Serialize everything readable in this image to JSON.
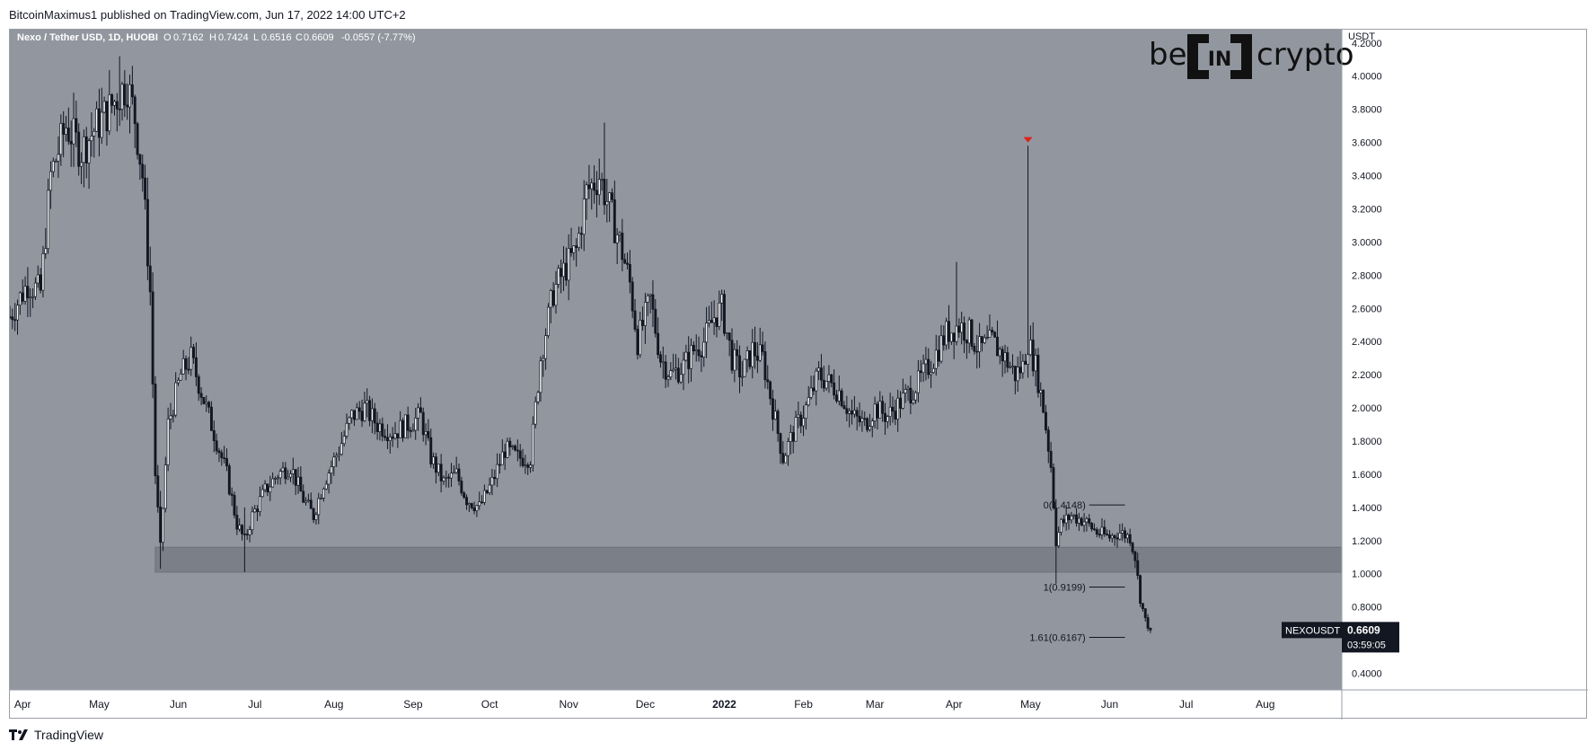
{
  "header": {
    "publisher_line": "BitcoinMaximus1 published on TradingView.com, Jun 17, 2022 14:00 UTC+2"
  },
  "legend": {
    "symbol_text": "Nexo / Tether USD, 1D, HUOBI",
    "o_label": "O",
    "o_value": "0.7162",
    "h_label": "H",
    "h_value": "0.7424",
    "l_label": "L",
    "l_value": "0.6516",
    "c_label": "C",
    "c_value": "0.6609",
    "change": "-0.0557 (-7.77%)"
  },
  "watermark": {
    "left": "be",
    "middle": "IN",
    "right": "crypto"
  },
  "axis": {
    "currency": "USDT"
  },
  "price_label": {
    "symbol": "NEXOUSDT",
    "price": "0.6609",
    "countdown": "03:59:05"
  },
  "footer": {
    "brand": "TradingView"
  },
  "colors": {
    "plot_background": "#92969f",
    "candle": "#131722",
    "support_zone": "#7b7f87",
    "marker": "#e0201b",
    "label_bg": "#131722"
  },
  "chart_data": {
    "type": "candlestick",
    "symbol": "NEXOUSDT",
    "timeframe": "1D",
    "exchange": "HUOBI",
    "ylim": [
      0.3,
      4.28
    ],
    "yticks": [
      "4.2000",
      "4.0000",
      "3.8000",
      "3.6000",
      "3.4000",
      "3.2000",
      "3.0000",
      "2.8000",
      "2.6000",
      "2.4000",
      "2.2000",
      "2.0000",
      "1.8000",
      "1.6000",
      "1.4000",
      "1.2000",
      "1.0000",
      "0.8000",
      "0.6000",
      "0.4000"
    ],
    "ytick_values": [
      4.2,
      4.0,
      3.8,
      3.6,
      3.4,
      3.2,
      3.0,
      2.8,
      2.6,
      2.4,
      2.2,
      2.0,
      1.8,
      1.6,
      1.4,
      1.2,
      1.0,
      0.8,
      0.6,
      0.4
    ],
    "xlim": [
      "2021-03-27",
      "2022-08-31"
    ],
    "xticks": [
      {
        "label": "Apr",
        "date": "2021-04-01",
        "bold": false
      },
      {
        "label": "May",
        "date": "2021-05-01",
        "bold": false
      },
      {
        "label": "Jun",
        "date": "2021-06-01",
        "bold": false
      },
      {
        "label": "Jul",
        "date": "2021-07-01",
        "bold": false
      },
      {
        "label": "Aug",
        "date": "2021-08-01",
        "bold": false
      },
      {
        "label": "Sep",
        "date": "2021-09-01",
        "bold": false
      },
      {
        "label": "Oct",
        "date": "2021-10-01",
        "bold": false
      },
      {
        "label": "Nov",
        "date": "2021-11-01",
        "bold": false
      },
      {
        "label": "Dec",
        "date": "2021-12-01",
        "bold": false
      },
      {
        "label": "2022",
        "date": "2022-01-01",
        "bold": true
      },
      {
        "label": "Feb",
        "date": "2022-02-01",
        "bold": false
      },
      {
        "label": "Mar",
        "date": "2022-03-01",
        "bold": false
      },
      {
        "label": "Apr",
        "date": "2022-04-01",
        "bold": false
      },
      {
        "label": "May",
        "date": "2022-05-01",
        "bold": false
      },
      {
        "label": "Jun",
        "date": "2022-06-01",
        "bold": false
      },
      {
        "label": "Jul",
        "date": "2022-07-01",
        "bold": false
      },
      {
        "label": "Aug",
        "date": "2022-08-01",
        "bold": false
      }
    ],
    "price_path": [
      [
        "2021-03-27",
        2.55
      ],
      [
        "2021-04-03",
        2.75
      ],
      [
        "2021-04-08",
        2.7
      ],
      [
        "2021-04-12",
        3.4
      ],
      [
        "2021-04-18",
        3.7
      ],
      [
        "2021-04-24",
        3.55
      ],
      [
        "2021-04-30",
        3.7
      ],
      [
        "2021-05-05",
        3.8
      ],
      [
        "2021-05-09",
        3.9
      ],
      [
        "2021-05-12",
        3.95
      ],
      [
        "2021-05-15",
        3.75
      ],
      [
        "2021-05-18",
        3.4
      ],
      [
        "2021-05-21",
        2.7
      ],
      [
        "2021-05-23",
        1.6
      ],
      [
        "2021-05-25",
        1.15
      ],
      [
        "2021-05-28",
        1.9
      ],
      [
        "2021-06-02",
        2.2
      ],
      [
        "2021-06-06",
        2.3
      ],
      [
        "2021-06-10",
        2.1
      ],
      [
        "2021-06-15",
        1.85
      ],
      [
        "2021-06-20",
        1.6
      ],
      [
        "2021-06-24",
        1.3
      ],
      [
        "2021-06-27",
        1.2
      ],
      [
        "2021-06-30",
        1.35
      ],
      [
        "2021-07-05",
        1.5
      ],
      [
        "2021-07-10",
        1.6
      ],
      [
        "2021-07-15",
        1.65
      ],
      [
        "2021-07-20",
        1.45
      ],
      [
        "2021-07-24",
        1.35
      ],
      [
        "2021-07-28",
        1.55
      ],
      [
        "2021-08-03",
        1.75
      ],
      [
        "2021-08-08",
        1.95
      ],
      [
        "2021-08-13",
        2.0
      ],
      [
        "2021-08-18",
        1.9
      ],
      [
        "2021-08-24",
        1.85
      ],
      [
        "2021-08-30",
        1.9
      ],
      [
        "2021-09-04",
        1.95
      ],
      [
        "2021-09-08",
        1.7
      ],
      [
        "2021-09-13",
        1.55
      ],
      [
        "2021-09-18",
        1.6
      ],
      [
        "2021-09-22",
        1.45
      ],
      [
        "2021-09-27",
        1.4
      ],
      [
        "2021-10-02",
        1.55
      ],
      [
        "2021-10-07",
        1.75
      ],
      [
        "2021-10-12",
        1.7
      ],
      [
        "2021-10-17",
        1.7
      ],
      [
        "2021-10-21",
        2.3
      ],
      [
        "2021-10-26",
        2.7
      ],
      [
        "2021-10-31",
        2.85
      ],
      [
        "2021-11-04",
        2.95
      ],
      [
        "2021-11-08",
        3.3
      ],
      [
        "2021-11-13",
        3.4
      ],
      [
        "2021-11-17",
        3.2
      ],
      [
        "2021-11-21",
        3.0
      ],
      [
        "2021-11-25",
        2.75
      ],
      [
        "2021-11-28",
        2.4
      ],
      [
        "2021-12-03",
        2.65
      ],
      [
        "2021-12-07",
        2.3
      ],
      [
        "2021-12-11",
        2.2
      ],
      [
        "2021-12-16",
        2.25
      ],
      [
        "2021-12-20",
        2.35
      ],
      [
        "2021-12-24",
        2.4
      ],
      [
        "2021-12-28",
        2.55
      ],
      [
        "2021-12-31",
        2.6
      ],
      [
        "2022-01-04",
        2.3
      ],
      [
        "2022-01-08",
        2.2
      ],
      [
        "2022-01-12",
        2.35
      ],
      [
        "2022-01-16",
        2.3
      ],
      [
        "2022-01-20",
        2.0
      ],
      [
        "2022-01-24",
        1.7
      ],
      [
        "2022-01-28",
        1.85
      ],
      [
        "2022-02-02",
        2.0
      ],
      [
        "2022-02-07",
        2.2
      ],
      [
        "2022-02-11",
        2.15
      ],
      [
        "2022-02-15",
        2.1
      ],
      [
        "2022-02-20",
        1.95
      ],
      [
        "2022-02-25",
        1.9
      ],
      [
        "2022-03-01",
        2.0
      ],
      [
        "2022-03-06",
        1.95
      ],
      [
        "2022-03-12",
        2.05
      ],
      [
        "2022-03-18",
        2.15
      ],
      [
        "2022-03-24",
        2.3
      ],
      [
        "2022-03-29",
        2.45
      ],
      [
        "2022-04-03",
        2.5
      ],
      [
        "2022-04-07",
        2.45
      ],
      [
        "2022-04-11",
        2.35
      ],
      [
        "2022-04-16",
        2.4
      ],
      [
        "2022-04-21",
        2.3
      ],
      [
        "2022-04-25",
        2.2
      ],
      [
        "2022-04-28",
        2.25
      ],
      [
        "2022-04-30",
        2.4
      ],
      [
        "2022-05-03",
        2.25
      ],
      [
        "2022-05-06",
        2.0
      ],
      [
        "2022-05-09",
        1.65
      ],
      [
        "2022-05-11",
        1.2
      ],
      [
        "2022-05-13",
        1.3
      ],
      [
        "2022-05-17",
        1.35
      ],
      [
        "2022-05-22",
        1.32
      ],
      [
        "2022-05-27",
        1.25
      ],
      [
        "2022-06-01",
        1.22
      ],
      [
        "2022-06-05",
        1.25
      ],
      [
        "2022-06-09",
        1.22
      ],
      [
        "2022-06-11",
        1.1
      ],
      [
        "2022-06-13",
        0.85
      ],
      [
        "2022-06-15",
        0.72
      ],
      [
        "2022-06-17",
        0.66
      ]
    ],
    "wick_spikes": [
      {
        "date": "2021-05-09",
        "high": 4.12,
        "low": 3.7
      },
      {
        "date": "2021-05-25",
        "high": 1.5,
        "low": 1.03
      },
      {
        "date": "2021-06-27",
        "high": 1.4,
        "low": 1.01
      },
      {
        "date": "2021-11-15",
        "high": 3.72,
        "low": 3.2
      },
      {
        "date": "2022-04-02",
        "high": 2.88,
        "low": 2.4
      },
      {
        "date": "2022-04-30",
        "high": 3.58,
        "low": 2.2
      },
      {
        "date": "2022-05-11",
        "high": 1.45,
        "low": 0.94
      }
    ],
    "support_zone": {
      "low": 1.01,
      "high": 1.16,
      "from": "2021-05-23",
      "to": "2022-08-31"
    },
    "top_marker": {
      "date": "2022-04-30",
      "price": 3.6
    },
    "fib_levels": [
      {
        "label": "0(1.4148)",
        "price": 1.4148
      },
      {
        "label": "1(0.9199)",
        "price": 0.9199
      },
      {
        "label": "1.61(0.6167)",
        "price": 0.6167
      }
    ],
    "fib_from": "2022-05-24",
    "fib_to": "2022-06-07",
    "last_price": 0.6609
  }
}
